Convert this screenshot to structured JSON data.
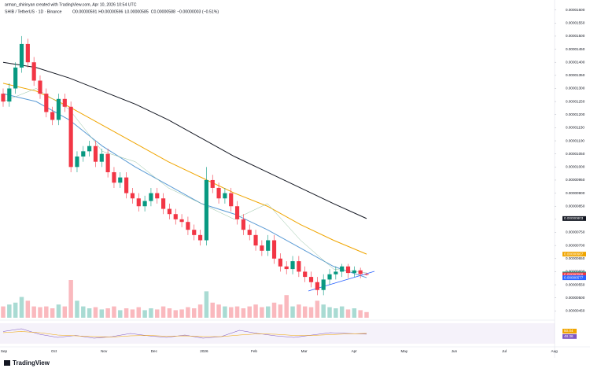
{
  "header": {
    "credit": "arman_shirinyan created with TradingView.com, Apr 10, 2026 10:54 UTC",
    "symbol": "SHIB / TetherUS · 1D · Binance",
    "ohlc_labels": [
      "O0.00000591",
      "H0.00000596",
      "L0.00000585",
      "C0.00000588",
      "−0.00000003 (−0.51%)"
    ]
  },
  "footer": {
    "logo": "TradingView"
  },
  "chart_data": {
    "type": "candlestick",
    "up_color": "#089981",
    "down_color": "#f23645",
    "categories": [
      "Sep",
      "Oct",
      "Nov",
      "Dec",
      "2026",
      "Feb",
      "Mar",
      "Apr",
      "May",
      "Jun",
      "Jul",
      "Aug"
    ],
    "ylim": [
      4.3e-06,
      1.62e-05
    ],
    "yticks": [
      {
        "value": 4.5e-06,
        "label": "0.00000450"
      },
      {
        "value": 5e-06,
        "label": "0.00000500"
      },
      {
        "value": 5.5e-06,
        "label": "0.00000550"
      },
      {
        "value": 6e-06,
        "label": "0.00000600"
      },
      {
        "value": 6.5e-06,
        "label": "0.00000650"
      },
      {
        "value": 7e-06,
        "label": "0.00000700"
      },
      {
        "value": 7.5e-06,
        "label": "0.00000750"
      },
      {
        "value": 8e-06,
        "label": "0.00000800"
      },
      {
        "value": 8.5e-06,
        "label": "0.00000850"
      },
      {
        "value": 9e-06,
        "label": "0.00000900"
      },
      {
        "value": 9.5e-06,
        "label": "0.00000950"
      },
      {
        "value": 1e-05,
        "label": "0.00001000"
      },
      {
        "value": 1.05e-05,
        "label": "0.00001050"
      },
      {
        "value": 1.1e-05,
        "label": "0.00001100"
      },
      {
        "value": 1.15e-05,
        "label": "0.00001150"
      },
      {
        "value": 1.2e-05,
        "label": "0.00001200"
      },
      {
        "value": 1.25e-05,
        "label": "0.00001250"
      },
      {
        "value": 1.3e-05,
        "label": "0.00001300"
      },
      {
        "value": 1.35e-05,
        "label": "0.00001350"
      },
      {
        "value": 1.4e-05,
        "label": "0.00001400"
      },
      {
        "value": 1.45e-05,
        "label": "0.00001450"
      },
      {
        "value": 1.5e-05,
        "label": "0.00001500"
      },
      {
        "value": 1.55e-05,
        "label": "0.00001550"
      },
      {
        "value": 1.6e-05,
        "label": "0.00001600"
      }
    ],
    "open": [
      1.28e-05,
      1.25e-05,
      1.3e-05,
      1.38e-05,
      1.47e-05,
      1.4e-05,
      1.33e-05,
      1.28e-05,
      1.21e-05,
      1.18e-05,
      1.26e-05,
      1.23e-05,
      1e-05,
      1.04e-05,
      1.06e-05,
      1.08e-05,
      1.02e-05,
      1.05e-05,
      9.8e-06,
      9.4e-06,
      9.6e-06,
      9e-06,
      8.8e-06,
      8.5e-06,
      8.7e-06,
      9e-06,
      8.8e-06,
      8.4e-06,
      8.2e-06,
      8e-06,
      7.9e-06,
      7.6e-06,
      7.4e-06,
      7.2e-06,
      9.5e-06,
      9.2e-06,
      8.8e-06,
      9e-06,
      8.5e-06,
      8e-06,
      7.6e-06,
      7.4e-06,
      7e-06,
      6.8e-06,
      7.2e-06,
      6.5e-06,
      6.2e-06,
      6.1e-06,
      6.4e-06,
      6e-06,
      5.8e-06,
      5.6e-06,
      5.3e-06,
      5.7e-06,
      5.9e-06,
      6e-06,
      6.2e-06,
      5.95e-06,
      6.05e-06,
      5.91e-06
    ],
    "high": [
      1.3e-05,
      1.32e-05,
      1.4e-05,
      1.5e-05,
      1.49e-05,
      1.42e-05,
      1.35e-05,
      1.3e-05,
      1.23e-05,
      1.28e-05,
      1.28e-05,
      1.25e-05,
      1.06e-05,
      1.08e-05,
      1.1e-05,
      1.1e-05,
      1.07e-05,
      1.07e-05,
      1e-05,
      9.8e-06,
      9.8e-06,
      9.2e-06,
      9e-06,
      8.9e-06,
      9.2e-06,
      9.2e-06,
      9e-06,
      8.6e-06,
      8.4e-06,
      8.2e-06,
      8.1e-06,
      7.8e-06,
      7.6e-06,
      1e-05,
      9.7e-06,
      9.4e-06,
      9.2e-06,
      9.2e-06,
      8.7e-06,
      8.2e-06,
      7.8e-06,
      7.6e-06,
      7.2e-06,
      7.4e-06,
      7.4e-06,
      6.7e-06,
      6.4e-06,
      6.6e-06,
      6.6e-06,
      6.2e-06,
      6e-06,
      5.8e-06,
      5.9e-06,
      6.1e-06,
      6.2e-06,
      6.3e-06,
      6.3e-06,
      6.2e-06,
      6.15e-06,
      5.96e-06
    ],
    "low": [
      1.23e-05,
      1.23e-05,
      1.28e-05,
      1.36e-05,
      1.38e-05,
      1.31e-05,
      1.26e-05,
      1.19e-05,
      1.16e-05,
      1.16e-05,
      1.21e-05,
      9.8e-06,
      9.8e-06,
      1.02e-05,
      1.04e-05,
      1e-05,
      1e-05,
      9.6e-06,
      9.2e-06,
      9.2e-06,
      8.8e-06,
      8.6e-06,
      8.3e-06,
      8.3e-06,
      8.5e-06,
      8.6e-06,
      8.2e-06,
      8e-06,
      7.8e-06,
      7.7e-06,
      7.4e-06,
      7.2e-06,
      7e-06,
      7e-06,
      9e-06,
      8.6e-06,
      8.6e-06,
      8.3e-06,
      7.8e-06,
      7.4e-06,
      7.2e-06,
      6.8e-06,
      6.6e-06,
      6.6e-06,
      6.3e-06,
      6e-06,
      5.9e-06,
      5.9e-06,
      5.8e-06,
      5.6e-06,
      5.4e-06,
      5.1e-06,
      5.1e-06,
      5.5e-06,
      5.7e-06,
      5.8e-06,
      5.75e-06,
      5.8e-06,
      5.75e-06,
      5.85e-06
    ],
    "close": [
      1.25e-05,
      1.3e-05,
      1.38e-05,
      1.47e-05,
      1.4e-05,
      1.33e-05,
      1.28e-05,
      1.21e-05,
      1.18e-05,
      1.26e-05,
      1.23e-05,
      1e-05,
      1.04e-05,
      1.06e-05,
      1.08e-05,
      1.02e-05,
      1.05e-05,
      9.8e-06,
      9.4e-06,
      9.6e-06,
      9e-06,
      8.8e-06,
      8.5e-06,
      8.7e-06,
      9e-06,
      8.8e-06,
      8.4e-06,
      8.2e-06,
      8e-06,
      7.9e-06,
      7.6e-06,
      7.4e-06,
      7.2e-06,
      9.5e-06,
      9.2e-06,
      8.8e-06,
      9e-06,
      8.5e-06,
      8e-06,
      7.6e-06,
      7.4e-06,
      7e-06,
      6.8e-06,
      7.2e-06,
      6.5e-06,
      6.2e-06,
      6.1e-06,
      6.4e-06,
      6e-06,
      5.8e-06,
      5.6e-06,
      5.3e-06,
      5.7e-06,
      5.9e-06,
      6e-06,
      6.2e-06,
      5.95e-06,
      6.05e-06,
      5.91e-06,
      5.88e-06
    ],
    "volume": {
      "ylim": [
        0,
        100
      ],
      "values": [
        30,
        35,
        40,
        55,
        45,
        30,
        28,
        30,
        25,
        35,
        30,
        100,
        45,
        30,
        25,
        28,
        22,
        25,
        30,
        20,
        25,
        22,
        28,
        20,
        25,
        22,
        30,
        25,
        20,
        22,
        28,
        25,
        35,
        70,
        40,
        35,
        30,
        28,
        30,
        25,
        30,
        35,
        28,
        30,
        40,
        35,
        60,
        30,
        35,
        30,
        28,
        45,
        35,
        28,
        25,
        30,
        22,
        25,
        20,
        15
      ]
    },
    "series": [
      {
        "color": "#131722",
        "values": [
          1.4e-05,
          1.38e-05,
          1.34e-05,
          1.29e-05,
          1.24e-05,
          1.18e-05,
          1.11e-05,
          1.04e-05,
          9.8e-06,
          9.2e-06,
          8.6e-06,
          8.03e-06
        ]
      },
      {
        "color": "#f0a500",
        "values": [
          1.32e-05,
          1.29e-05,
          1.23e-05,
          1.16e-05,
          1.09e-05,
          1.02e-05,
          9.6e-06,
          9e-06,
          8.5e-06,
          7.8e-06,
          7.2e-06,
          6.67e-06
        ]
      },
      {
        "color": "#5b9bd5",
        "values": [
          1.28e-05,
          1.25e-05,
          1.18e-05,
          1.08e-05,
          1e-05,
          9.3e-06,
          8.6e-06,
          8.2e-06,
          7.6e-06,
          6.9e-06,
          6.2e-06,
          5.77e-06
        ]
      },
      {
        "color": "#8fbf9f",
        "values": [
          1.25e-05,
          1.3e-05,
          1.22e-05,
          1.06e-05,
          1.02e-05,
          9.2e-06,
          8.6e-06,
          8e-06,
          8.6e-06,
          7.2e-06,
          6.1e-06,
          5.95e-06
        ]
      }
    ],
    "price_tags": [
      {
        "value": 8.03e-06,
        "label": "0.00000803",
        "color": "#131722"
      },
      {
        "value": 6.67e-06,
        "label": "0.00000667",
        "color": "#f0a500"
      },
      {
        "value": 5.91e-06,
        "label": "0.00000591",
        "color": "#089981"
      },
      {
        "value": 5.88e-06,
        "label": "0.00000588",
        "color": "#f23645"
      },
      {
        "value": 5.77e-06,
        "label": "0.00000577",
        "color": "#2962ff"
      }
    ],
    "rsi": {
      "ylim": [
        20,
        80
      ],
      "color": "#7e57c2",
      "ma_color": "#f0a500",
      "values": [
        55,
        62,
        48,
        40,
        45,
        38,
        42,
        50,
        44,
        40,
        46,
        38,
        42,
        58,
        50,
        44,
        40,
        46,
        52,
        50,
        48.36
      ],
      "ma": [
        52,
        55,
        52,
        46,
        44,
        42,
        41,
        44,
        45,
        43,
        44,
        42,
        42,
        46,
        49,
        48,
        45,
        45,
        47,
        49,
        50.04
      ]
    }
  }
}
